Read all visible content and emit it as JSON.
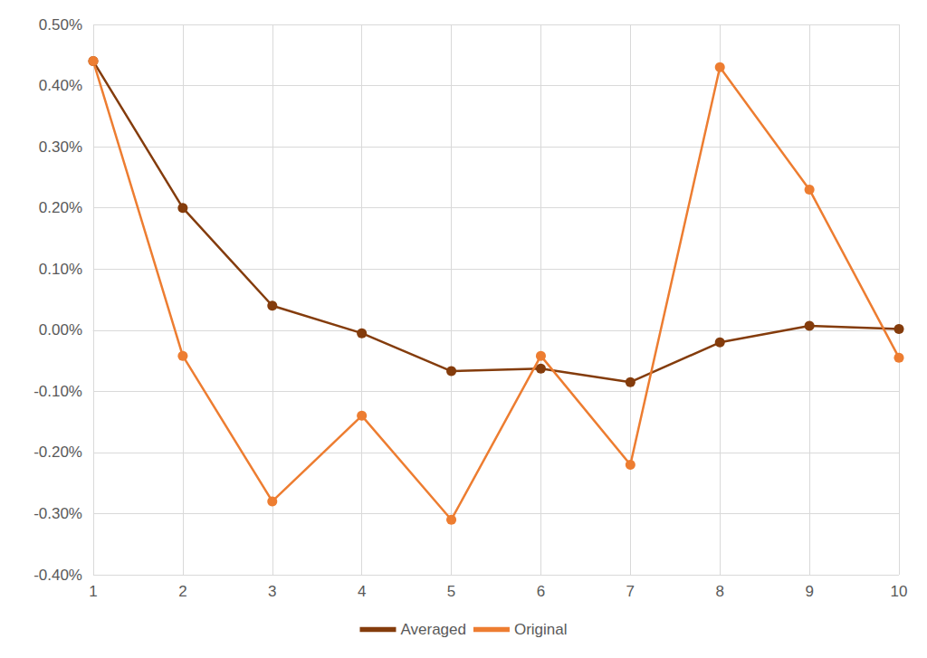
{
  "chart_data": {
    "type": "line",
    "categories": [
      "1",
      "2",
      "3",
      "4",
      "5",
      "6",
      "7",
      "8",
      "9",
      "10"
    ],
    "series": [
      {
        "name": "Averaged",
        "color": "#843c0c",
        "marker": "circle",
        "values": [
          0.44,
          0.2,
          0.04,
          -0.005,
          -0.067,
          -0.063,
          -0.085,
          -0.02,
          0.007,
          0.002
        ]
      },
      {
        "name": "Original",
        "color": "#ed7d31",
        "marker": "circle",
        "values": [
          0.44,
          -0.042,
          -0.28,
          -0.14,
          -0.31,
          -0.042,
          -0.22,
          0.43,
          0.23,
          -0.045
        ]
      }
    ],
    "ylim": [
      -0.4,
      0.5
    ],
    "yticks": [
      {
        "value": -0.4,
        "label": "-0.40%"
      },
      {
        "value": -0.3,
        "label": "-0.30%"
      },
      {
        "value": -0.2,
        "label": "-0.20%"
      },
      {
        "value": -0.1,
        "label": "-0.10%"
      },
      {
        "value": 0,
        "label": "0.00%"
      },
      {
        "value": 0.1,
        "label": "0.10%"
      },
      {
        "value": 0.2,
        "label": "0.20%"
      },
      {
        "value": 0.3,
        "label": "0.30%"
      },
      {
        "value": 0.4,
        "label": "0.40%"
      },
      {
        "value": 0.5,
        "label": "0.50%"
      }
    ],
    "grid": true,
    "legend": "bottom"
  }
}
